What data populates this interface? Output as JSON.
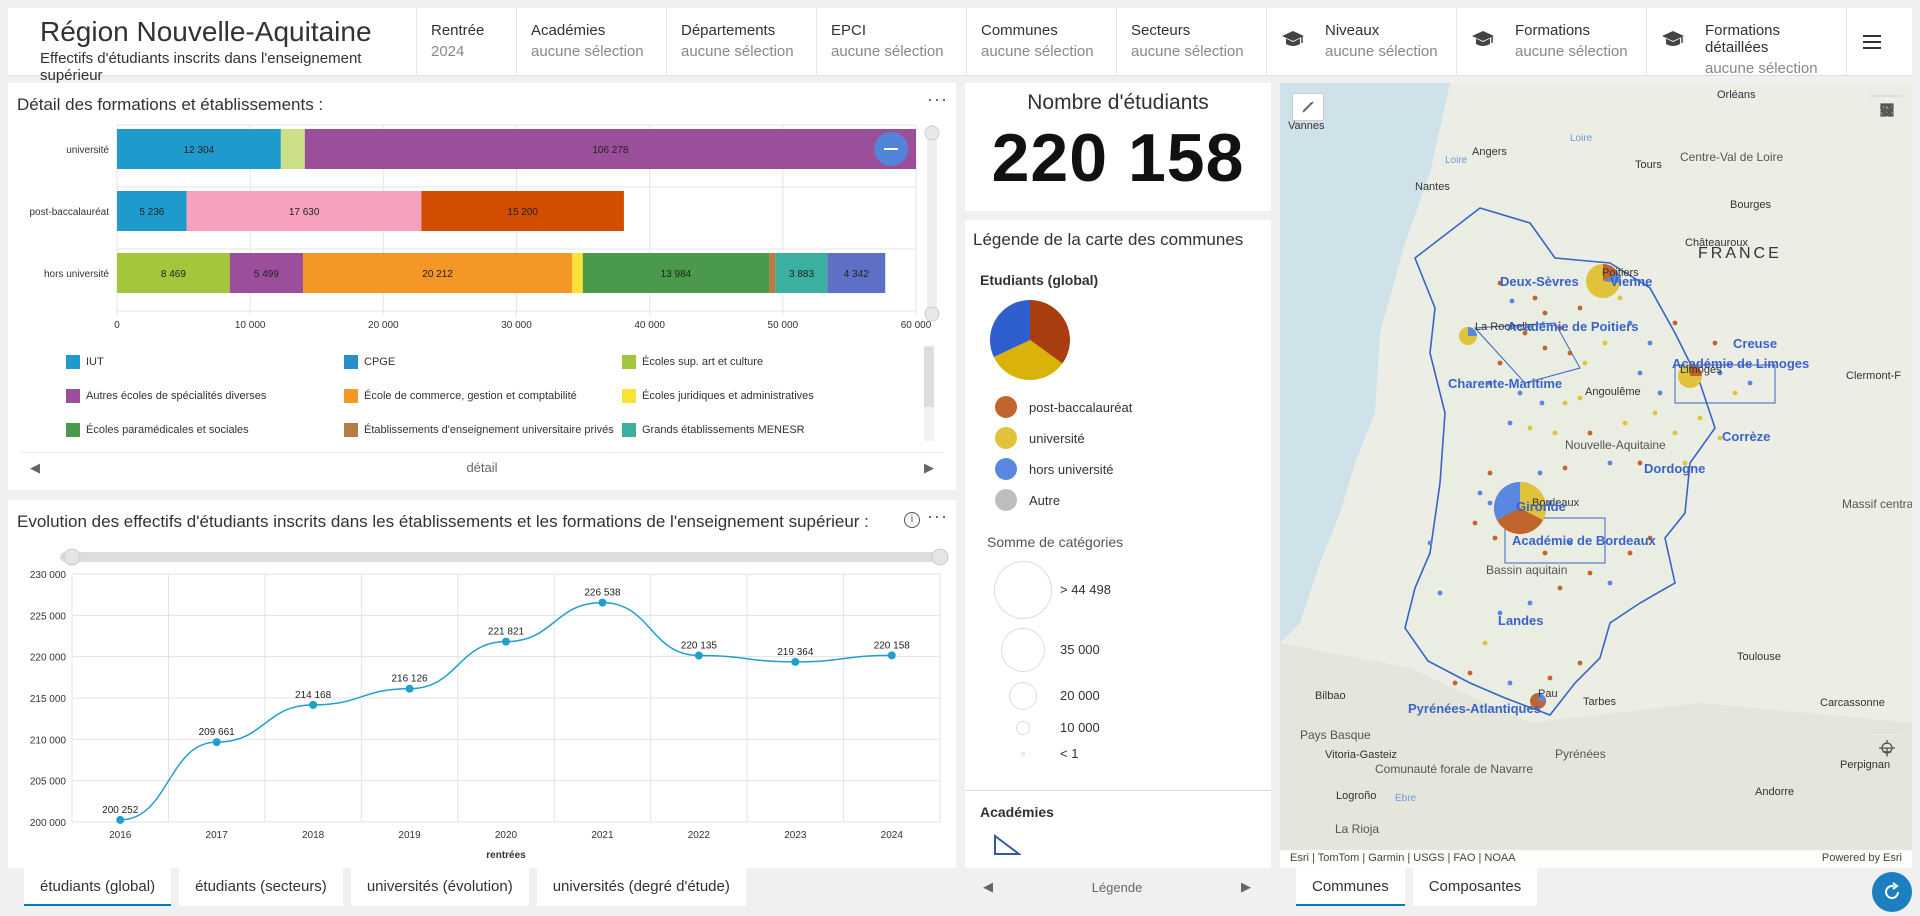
{
  "header": {
    "title": "Région Nouvelle-Aquitaine",
    "subtitle": "Effectifs d'étudiants inscrits dans l'enseignement supérieur",
    "selectors": [
      {
        "label": "Rentrée",
        "value": "2024",
        "w": 100
      },
      {
        "label": "Académies",
        "value": "aucune sélection",
        "w": 150
      },
      {
        "label": "Départements",
        "value": "aucune sélection",
        "w": 150
      },
      {
        "label": "EPCI",
        "value": "aucune sélection",
        "w": 150
      },
      {
        "label": "Communes",
        "value": "aucune sélection",
        "w": 150
      },
      {
        "label": "Secteurs",
        "value": "aucune sélection",
        "w": 150
      },
      {
        "label": "Niveaux",
        "value": "aucune sélection",
        "w": 190,
        "icon": true
      },
      {
        "label": "Formations",
        "value": "aucune sélection",
        "w": 190,
        "icon": true
      },
      {
        "label": "Formations détaillées",
        "value": "aucune sélection",
        "w": 200,
        "icon": true
      }
    ]
  },
  "detail": {
    "title": "Détail des formations et établissements :",
    "footer": "détail"
  },
  "evolution": {
    "title": "Evolution des effectifs d'étudiants inscrits dans les établissements et les formations de l'enseignement supérieur :"
  },
  "counter": {
    "title": "Nombre d'étudiants",
    "value": "220 158"
  },
  "legend": {
    "title": "Légende de la carte des communes",
    "section": "Etudiants (global)",
    "items": [
      {
        "label": "post-baccalauréat",
        "color": "#c2652c"
      },
      {
        "label": "université",
        "color": "#e0c33a"
      },
      {
        "label": "hors université",
        "color": "#5a88e0"
      },
      {
        "label": "Autre",
        "color": "#bdbdbd"
      }
    ],
    "size_title": "Somme de catégories",
    "sizes": [
      "> 44 498",
      "35 000",
      "20 000",
      "10 000",
      "< 1"
    ],
    "academies": "Académies",
    "footer": "Légende"
  },
  "tabs_left": [
    "étudiants (global)",
    "étudiants (secteurs)",
    "universités (évolution)",
    "universités (degré d'étude)"
  ],
  "tabs_map": [
    "Communes",
    "Composantes"
  ],
  "map": {
    "attribution": "Esri | TomTom | Garmin | USGS | FAO | NOAA",
    "powered": "Powered by Esri",
    "labels": [
      {
        "t": "Vannes",
        "cls": "c"
      },
      {
        "t": "Angers",
        "cls": "c"
      },
      {
        "t": "Tours",
        "cls": "c"
      },
      {
        "t": "Orléans",
        "cls": "c"
      },
      {
        "t": "Centre-Val de Loire",
        "cls": "r"
      },
      {
        "t": "Nantes",
        "cls": "c"
      },
      {
        "t": "Bourges",
        "cls": "c"
      },
      {
        "t": "Châteauroux",
        "cls": "c"
      },
      {
        "t": "FRANCE",
        "cls": "f"
      },
      {
        "t": "Poitiers",
        "cls": "c"
      },
      {
        "t": "Deux-Sèvres",
        "cls": "b"
      },
      {
        "t": "Vienne",
        "cls": "b"
      },
      {
        "t": "La Rochelle",
        "cls": "c"
      },
      {
        "t": "Académie de Poitiers",
        "cls": "b"
      },
      {
        "t": "Creuse",
        "cls": "b"
      },
      {
        "t": "Académie de Limoges",
        "cls": "b"
      },
      {
        "t": "Clermont-F",
        "cls": "c"
      },
      {
        "t": "Limoges",
        "cls": "c"
      },
      {
        "t": "Charente-Maritime",
        "cls": "b"
      },
      {
        "t": "Angoulême",
        "cls": "c"
      },
      {
        "t": "Corrèze",
        "cls": "b"
      },
      {
        "t": "Nouvelle-Aquitaine",
        "cls": "r"
      },
      {
        "t": "Dordogne",
        "cls": "b"
      },
      {
        "t": "Massif central",
        "cls": "r"
      },
      {
        "t": "Bordeaux",
        "cls": "c"
      },
      {
        "t": "Gironde",
        "cls": "b"
      },
      {
        "t": "Académie de Bordeaux",
        "cls": "b"
      },
      {
        "t": "Bassin aquitain",
        "cls": "r"
      },
      {
        "t": "Landes",
        "cls": "b"
      },
      {
        "t": "Toulouse",
        "cls": "c"
      },
      {
        "t": "Bilbao",
        "cls": "c"
      },
      {
        "t": "Pau",
        "cls": "c"
      },
      {
        "t": "Tarbes",
        "cls": "c"
      },
      {
        "t": "Carcassonne",
        "cls": "c"
      },
      {
        "t": "Pyrénées-Atlantiques",
        "cls": "b"
      },
      {
        "t": "Pays Basque",
        "cls": "r"
      },
      {
        "t": "Vitoria-Gasteiz",
        "cls": "c"
      },
      {
        "t": "Pyrénées",
        "cls": "r"
      },
      {
        "t": "Perpignan",
        "cls": "c"
      },
      {
        "t": "Comunauté forale de Navarre",
        "cls": "r"
      },
      {
        "t": "Logroño",
        "cls": "c"
      },
      {
        "t": "Andorre",
        "cls": "c"
      },
      {
        "t": "La Rioja",
        "cls": "r"
      },
      {
        "t": "Ebre",
        "cls": "w"
      },
      {
        "t": "Loire",
        "cls": "w"
      },
      {
        "t": "Loire",
        "cls": "w"
      }
    ]
  },
  "chart_data": [
    {
      "type": "bar",
      "orientation": "horizontal",
      "stacked": true,
      "categories": [
        "université",
        "post-baccalauréat",
        "hors université"
      ],
      "xlim": [
        0,
        60000
      ],
      "xticks": [
        "0",
        "10 000",
        "20 000",
        "30 000",
        "40 000",
        "50 000",
        "60 000"
      ],
      "segments": [
        [
          {
            "v": 12304,
            "c": "#1e9bcc",
            "l": "12 304"
          },
          {
            "v": 1800,
            "c": "#cce08a",
            "l": ""
          },
          {
            "v": 106278,
            "c": "#9b4f9b",
            "l": "106 278"
          }
        ],
        [
          {
            "v": 5236,
            "c": "#1e9bcc",
            "l": "5 236"
          },
          {
            "v": 17630,
            "c": "#f7a1bc",
            "l": "17 630"
          },
          {
            "v": 15200,
            "c": "#d24d00",
            "l": "15 200"
          }
        ],
        [
          {
            "v": 8469,
            "c": "#a3c63c",
            "l": "8 469"
          },
          {
            "v": 5499,
            "c": "#9b4f9b",
            "l": "5 499"
          },
          {
            "v": 20212,
            "c": "#f59727",
            "l": "20 212"
          },
          {
            "v": 800,
            "c": "#fbe036",
            "l": ""
          },
          {
            "v": 13984,
            "c": "#4b9a4b",
            "l": "13 984"
          },
          {
            "v": 500,
            "c": "#b57d45",
            "l": ""
          },
          {
            "v": 3883,
            "c": "#3bafa0",
            "l": "3 883"
          },
          {
            "v": 4342,
            "c": "#5e6fc6",
            "l": "4 342"
          }
        ]
      ],
      "legend": [
        {
          "label": "IUT",
          "color": "#1e9bcc"
        },
        {
          "label": "CPGE",
          "color": "#2890c8"
        },
        {
          "label": "Écoles sup. art et culture",
          "color": "#a3c63c"
        },
        {
          "label": "Autres écoles de spécialités diverses",
          "color": "#9b4f9b"
        },
        {
          "label": "École de commerce, gestion et comptabilité",
          "color": "#f59727"
        },
        {
          "label": "Écoles juridiques et administratives",
          "color": "#fbe036"
        },
        {
          "label": "Écoles paramédicales et sociales",
          "color": "#4b9a4b"
        },
        {
          "label": "Établissements d'enseignement universitaire privés",
          "color": "#b57d45"
        },
        {
          "label": "Grands établissements MENESR",
          "color": "#3bafa0"
        }
      ]
    },
    {
      "type": "line",
      "x": [
        "2016",
        "2017",
        "2018",
        "2019",
        "2020",
        "2021",
        "2022",
        "2023",
        "2024"
      ],
      "values": [
        200252,
        209661,
        214168,
        216126,
        221821,
        226538,
        220135,
        219364,
        220158
      ],
      "labels": [
        "200 252",
        "209 661",
        "214 168",
        "216 126",
        "221 821",
        "226 538",
        "220 135",
        "219 364",
        "220 158"
      ],
      "ylim": [
        200000,
        230000
      ],
      "yticks": [
        "200 000",
        "205 000",
        "210 000",
        "215 000",
        "220 000",
        "225 000",
        "230 000"
      ],
      "xlabel": "rentrées",
      "color": "#1ea0cc"
    },
    {
      "type": "pie",
      "values": [
        35,
        33,
        32
      ],
      "colors": [
        "#a83d10",
        "#d9b20a",
        "#2f5fcf"
      ]
    }
  ]
}
